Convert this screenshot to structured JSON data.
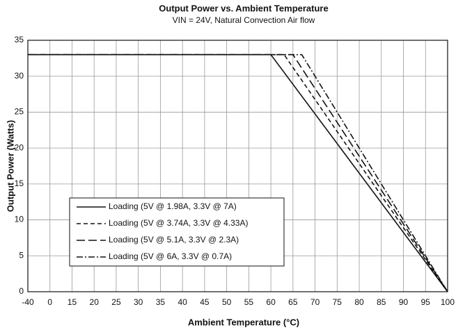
{
  "chart_data": {
    "type": "line",
    "title": "Output Power vs. Ambient Temperature",
    "subtitle": "VIN = 24V, Natural Convection Air flow",
    "x_label": "Ambient Temperature (°C)",
    "y_label": "Output Power (Watts)",
    "x": [
      -40,
      60,
      100
    ],
    "series": [
      {
        "name": "Loading (5V @ 1.98A, 3.3V @ 7A)",
        "color": "#111111",
        "dash": "solid",
        "x": [
          -40,
          60,
          100
        ],
        "values": [
          33,
          33,
          0
        ]
      },
      {
        "name": "Loading (5V @ 3.74A, 3.3V @ 4.33A)",
        "color": "#111111",
        "dash": "dashed",
        "x": [
          -40,
          63,
          100
        ],
        "values": [
          33,
          33,
          0
        ]
      },
      {
        "name": "Loading (5V @ 5.1A, 3.3V @ 2.3A)",
        "color": "#111111",
        "dash": "longdash",
        "x": [
          -40,
          65,
          100
        ],
        "values": [
          33,
          33,
          0
        ]
      },
      {
        "name": "Loading (5V @ 6A, 3.3V @ 0.7A)",
        "color": "#111111",
        "dash": "dashdot",
        "x": [
          -40,
          67,
          100
        ],
        "values": [
          33,
          33,
          0
        ]
      }
    ],
    "xlim": [
      -40,
      100
    ],
    "xticks": [
      -40,
      0,
      15,
      20,
      25,
      30,
      35,
      40,
      45,
      50,
      55,
      60,
      65,
      70,
      75,
      80,
      85,
      90,
      95,
      100
    ],
    "ylim": [
      0,
      35
    ],
    "yticks": [
      0,
      5,
      10,
      15,
      20,
      25,
      30,
      35
    ],
    "grid": true,
    "legend": "lower left"
  }
}
